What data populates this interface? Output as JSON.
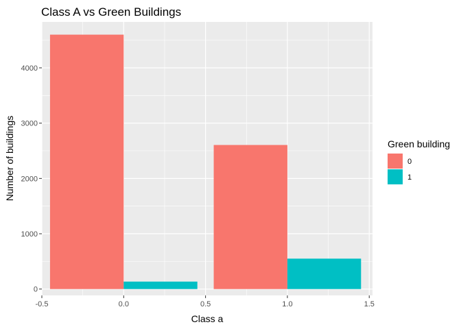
{
  "chart_data": {
    "type": "bar",
    "title": "Class A vs Green Buildings",
    "xlabel": "Class a",
    "ylabel": "Number of buildings",
    "x": [
      0,
      1
    ],
    "xlim": [
      -0.5,
      1.52
    ],
    "ylim": [
      -115,
      4830
    ],
    "xticks": [
      {
        "value": -0.5,
        "label": "-0.5"
      },
      {
        "value": 0,
        "label": "0.0"
      },
      {
        "value": 0.5,
        "label": "0.5"
      },
      {
        "value": 1,
        "label": "1.0"
      },
      {
        "value": 1.5,
        "label": "1.5"
      }
    ],
    "yticks": [
      {
        "value": 0,
        "label": "0"
      },
      {
        "value": 1000,
        "label": "1000"
      },
      {
        "value": 2000,
        "label": "2000"
      },
      {
        "value": 3000,
        "label": "3000"
      },
      {
        "value": 4000,
        "label": "4000"
      }
    ],
    "series": [
      {
        "name": "0",
        "color": "#F8766D",
        "values": [
          4600,
          2605
        ]
      },
      {
        "name": "1",
        "color": "#00BFC4",
        "values": [
          135,
          550
        ]
      }
    ],
    "legend": {
      "title": "Green building",
      "position": "right"
    },
    "grid": true
  }
}
